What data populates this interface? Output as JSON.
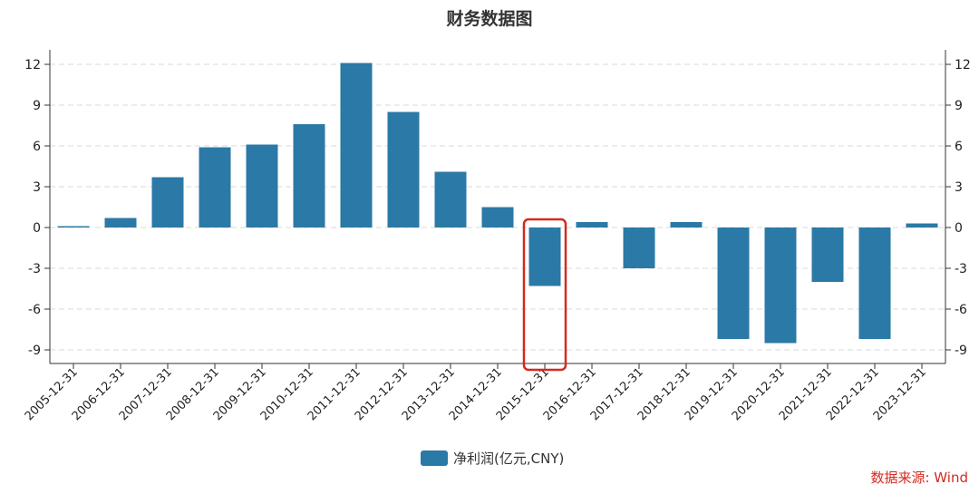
{
  "chart_data": {
    "type": "bar",
    "title": "财务数据图",
    "categories": [
      "2005-12-31",
      "2006-12-31",
      "2007-12-31",
      "2008-12-31",
      "2009-12-31",
      "2010-12-31",
      "2011-12-31",
      "2012-12-31",
      "2013-12-31",
      "2014-12-31",
      "2015-12-31",
      "2016-12-31",
      "2017-12-31",
      "2018-12-31",
      "2019-12-31",
      "2020-12-31",
      "2021-12-31",
      "2022-12-31",
      "2023-12-31"
    ],
    "series": [
      {
        "name": "净利润(亿元,CNY)",
        "color": "#2b79a6",
        "values": [
          0.1,
          0.7,
          3.7,
          5.9,
          6.1,
          7.6,
          12.1,
          8.5,
          4.1,
          1.5,
          -4.3,
          0.4,
          -3.0,
          0.4,
          -8.2,
          -8.5,
          -4.0,
          -8.2,
          0.3
        ]
      }
    ],
    "ylim": [
      -10,
      12
    ],
    "yticks": [
      12,
      9,
      6,
      3,
      0,
      -3,
      -6,
      -9
    ],
    "grid": true,
    "legend_position": "bottom-center",
    "highlight_category": "2015-12-31",
    "highlight_color": "#d42a1e"
  },
  "source_label": "数据来源: Wind"
}
